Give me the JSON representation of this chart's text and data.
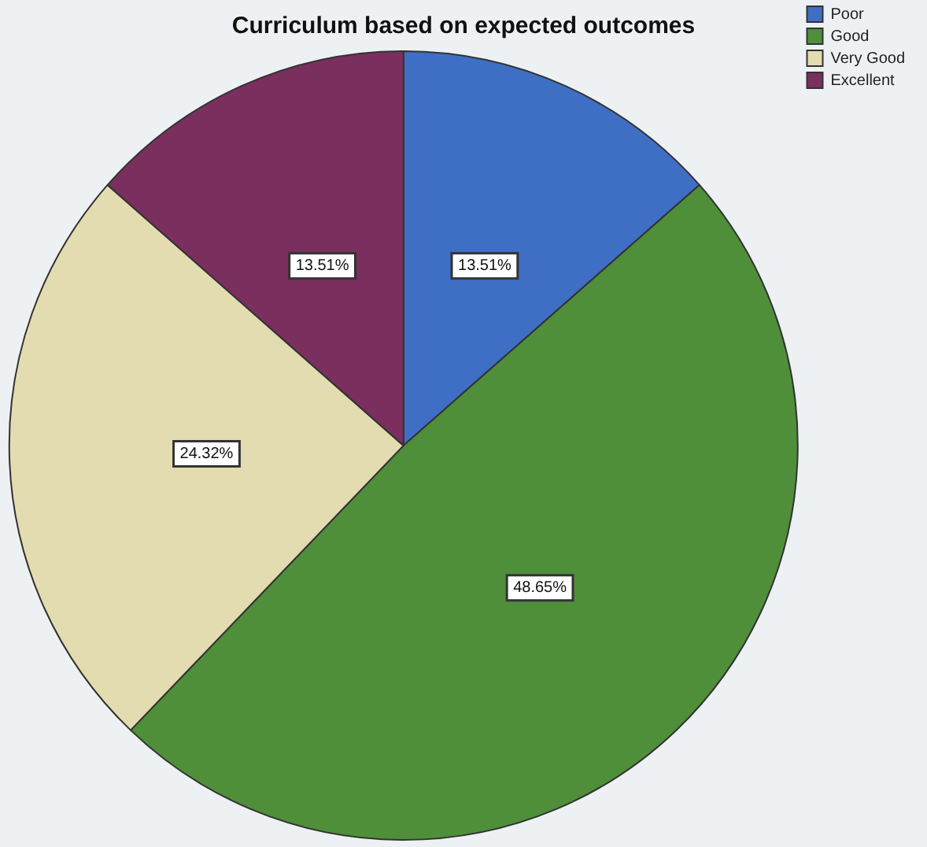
{
  "chart_data": {
    "type": "pie",
    "title": "Curriculum based on expected outcomes",
    "categories": [
      "Poor",
      "Good",
      "Very Good",
      "Excellent"
    ],
    "values": [
      13.51,
      48.65,
      24.32,
      13.51
    ],
    "value_labels": [
      "13.51%",
      "48.65%",
      "24.32%",
      "13.51%"
    ],
    "colors": [
      "#3f6fc4",
      "#4f8f3a",
      "#e2dcb0",
      "#7a2f5e"
    ],
    "legend": "top right"
  }
}
